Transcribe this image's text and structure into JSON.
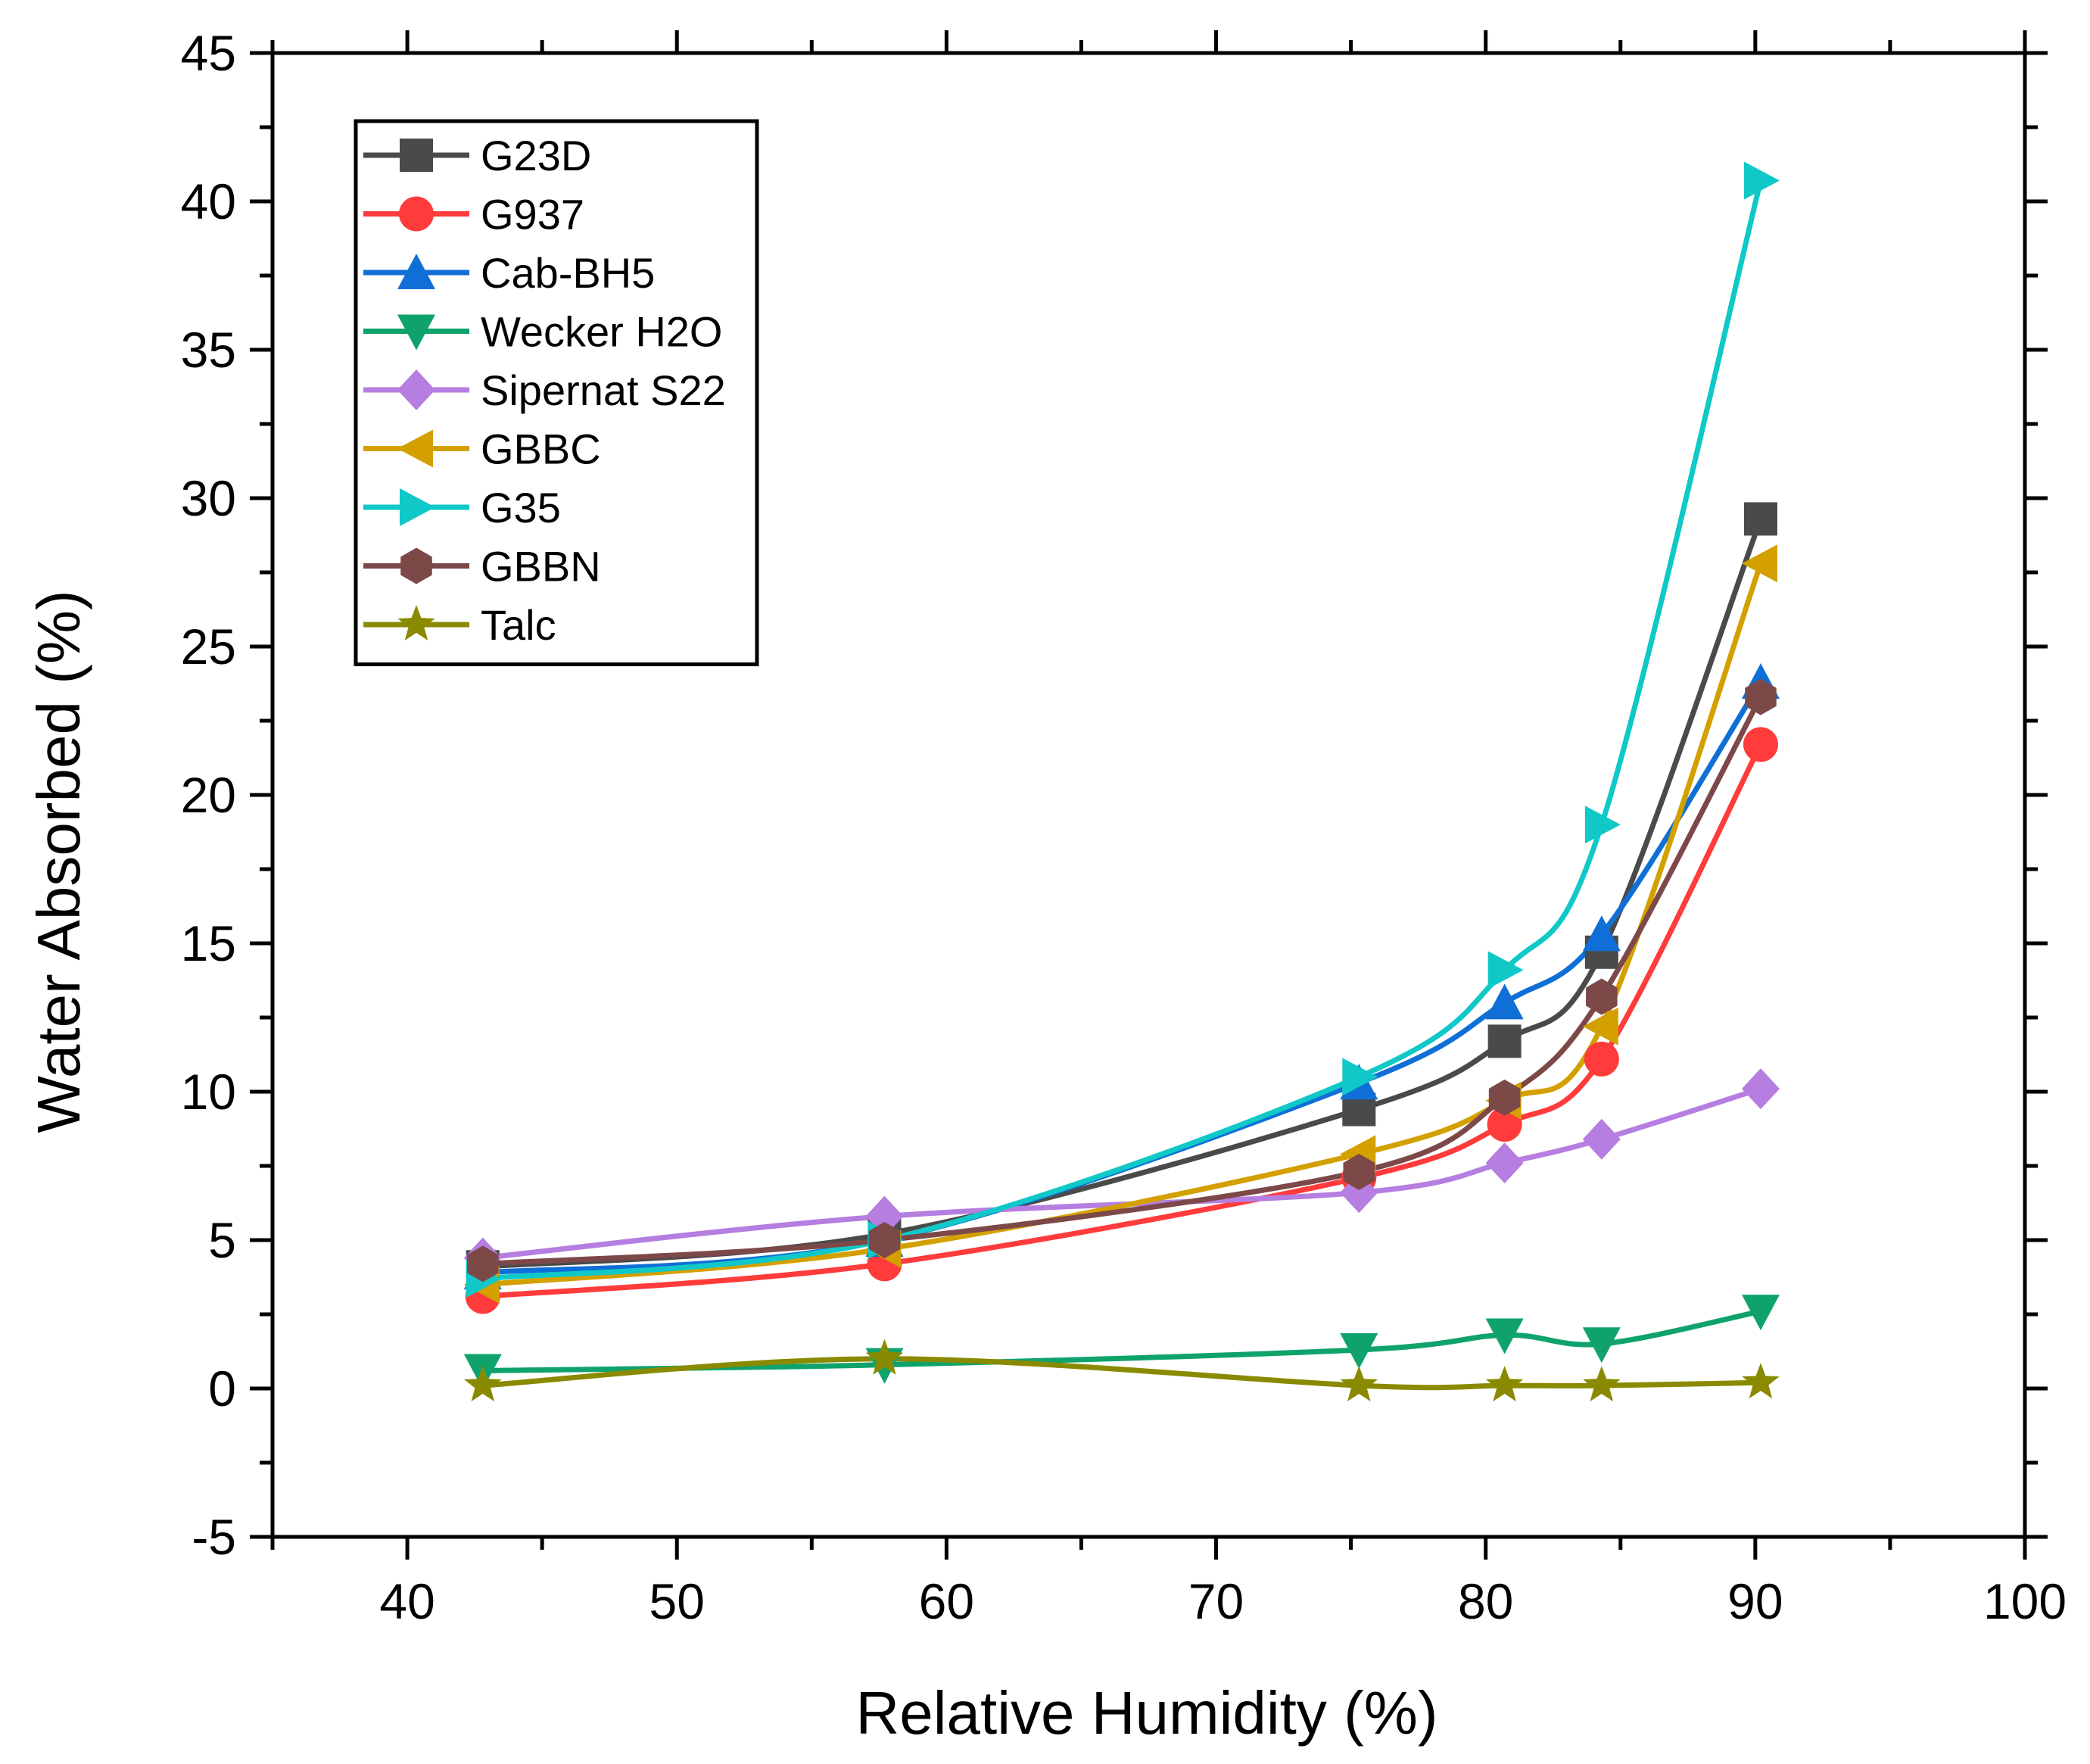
{
  "chart_data": {
    "type": "line",
    "title": "",
    "xlabel": "Relative Humidity (%)",
    "ylabel": "Water Absorbed (%)",
    "xlim": [
      35,
      100
    ],
    "ylim": [
      -5,
      45
    ],
    "xticks": [
      40,
      50,
      60,
      70,
      80,
      90,
      100
    ],
    "yticks": [
      -5,
      0,
      5,
      10,
      15,
      20,
      25,
      30,
      35,
      40,
      45
    ],
    "x": [
      42.8,
      57.7,
      75.3,
      80.7,
      84.3,
      90.2
    ],
    "legend_position": "top-left",
    "grid": false,
    "series": [
      {
        "name": "G23D",
        "color": "#4a4a4a",
        "marker": "square",
        "values": [
          4.1,
          5.2,
          9.4,
          11.7,
          14.7,
          29.3
        ]
      },
      {
        "name": "G937",
        "color": "#ff3b3b",
        "marker": "circle",
        "values": [
          3.1,
          4.2,
          7.1,
          8.9,
          11.1,
          21.7
        ]
      },
      {
        "name": "Cab-BH5",
        "color": "#0f6fd6",
        "marker": "triangle-up",
        "values": [
          3.9,
          5.0,
          10.3,
          13.0,
          15.3,
          23.8
        ]
      },
      {
        "name": "Wecker H2O",
        "color": "#0fa36b",
        "marker": "triangle-down",
        "values": [
          0.6,
          0.8,
          1.3,
          1.8,
          1.5,
          2.6
        ]
      },
      {
        "name": "Sipernat S22",
        "color": "#b57ee0",
        "marker": "diamond",
        "values": [
          4.4,
          5.8,
          6.6,
          7.6,
          8.4,
          10.1
        ]
      },
      {
        "name": "GBBC",
        "color": "#d4a000",
        "marker": "triangle-left",
        "values": [
          3.5,
          4.7,
          7.9,
          9.7,
          12.2,
          27.8
        ]
      },
      {
        "name": "G35",
        "color": "#10c8c8",
        "marker": "triangle-right",
        "values": [
          3.7,
          5.0,
          10.5,
          14.1,
          19.0,
          40.7
        ]
      },
      {
        "name": "GBBN",
        "color": "#7d4848",
        "marker": "hexagon",
        "values": [
          4.2,
          5.0,
          7.3,
          9.8,
          13.2,
          23.3
        ]
      },
      {
        "name": "Talc",
        "color": "#8a8a00",
        "marker": "star",
        "values": [
          0.1,
          1.0,
          0.1,
          0.1,
          0.1,
          0.2
        ]
      }
    ]
  }
}
